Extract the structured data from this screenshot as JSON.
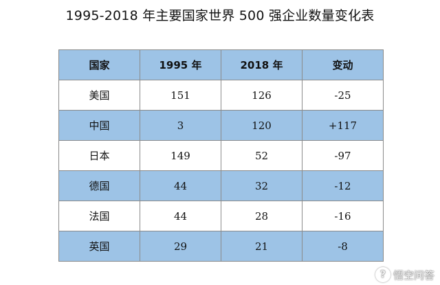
{
  "title": "1995-2018 年主要国家世界 500 强企业数量变化表",
  "table": {
    "headers": [
      "国家",
      "1995 年",
      "2018 年",
      "变动"
    ],
    "rows": [
      {
        "country": "美国",
        "y1995": "151",
        "y2018": "126",
        "change": "-25"
      },
      {
        "country": "中国",
        "y1995": "3",
        "y2018": "120",
        "change": "+117"
      },
      {
        "country": "日本",
        "y1995": "149",
        "y2018": "52",
        "change": "-97"
      },
      {
        "country": "德国",
        "y1995": "44",
        "y2018": "32",
        "change": "-12"
      },
      {
        "country": "法国",
        "y1995": "44",
        "y2018": "28",
        "change": "-16"
      },
      {
        "country": "英国",
        "y1995": "29",
        "y2018": "21",
        "change": "-8"
      }
    ]
  },
  "colors": {
    "header_bg": "#9dc3e6",
    "stripe_bg": "#9dc3e6",
    "row_bg": "#ffffff",
    "border": "#8a8a8a"
  },
  "watermark": {
    "logo_glyph": "?",
    "text": "悟空问答"
  }
}
